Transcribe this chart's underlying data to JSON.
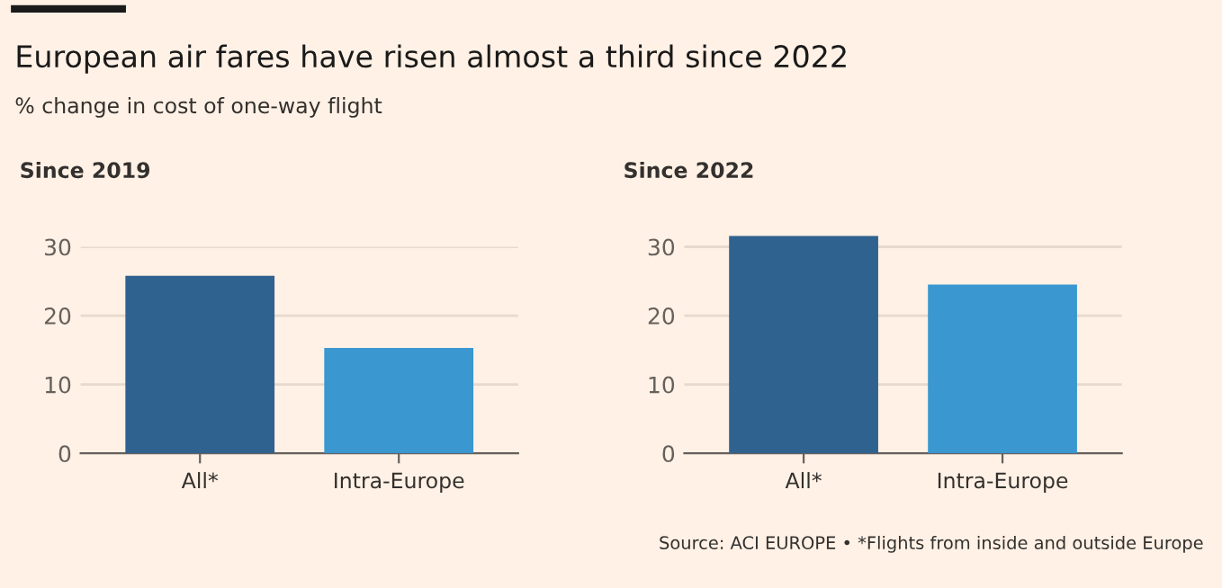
{
  "chart_data": [
    {
      "type": "bar",
      "title": "European air fares have risen almost a third since 2022",
      "subtitle": "% change in cost of one-way flight",
      "ylabel": "Since 2019",
      "categories": [
        "All*",
        "Intra-Europe"
      ],
      "values": [
        25.8,
        15.3
      ],
      "colors": [
        "#30628f",
        "#3a97d0"
      ],
      "ylim": [
        0,
        30
      ],
      "yticks": [
        0,
        10,
        20,
        30
      ],
      "grid": "y"
    },
    {
      "type": "bar",
      "ylabel": "Since 2022",
      "categories": [
        "All*",
        "Intra-Europe"
      ],
      "values": [
        31.6,
        24.5
      ],
      "colors": [
        "#30628f",
        "#3a97d0"
      ],
      "ylim": [
        0,
        31.6
      ],
      "yticks": [
        0,
        10,
        20,
        30
      ],
      "grid": "y",
      "annotations": [
        "Source: ACI EUROPE • *Flights from inside and outside Europe"
      ]
    }
  ]
}
